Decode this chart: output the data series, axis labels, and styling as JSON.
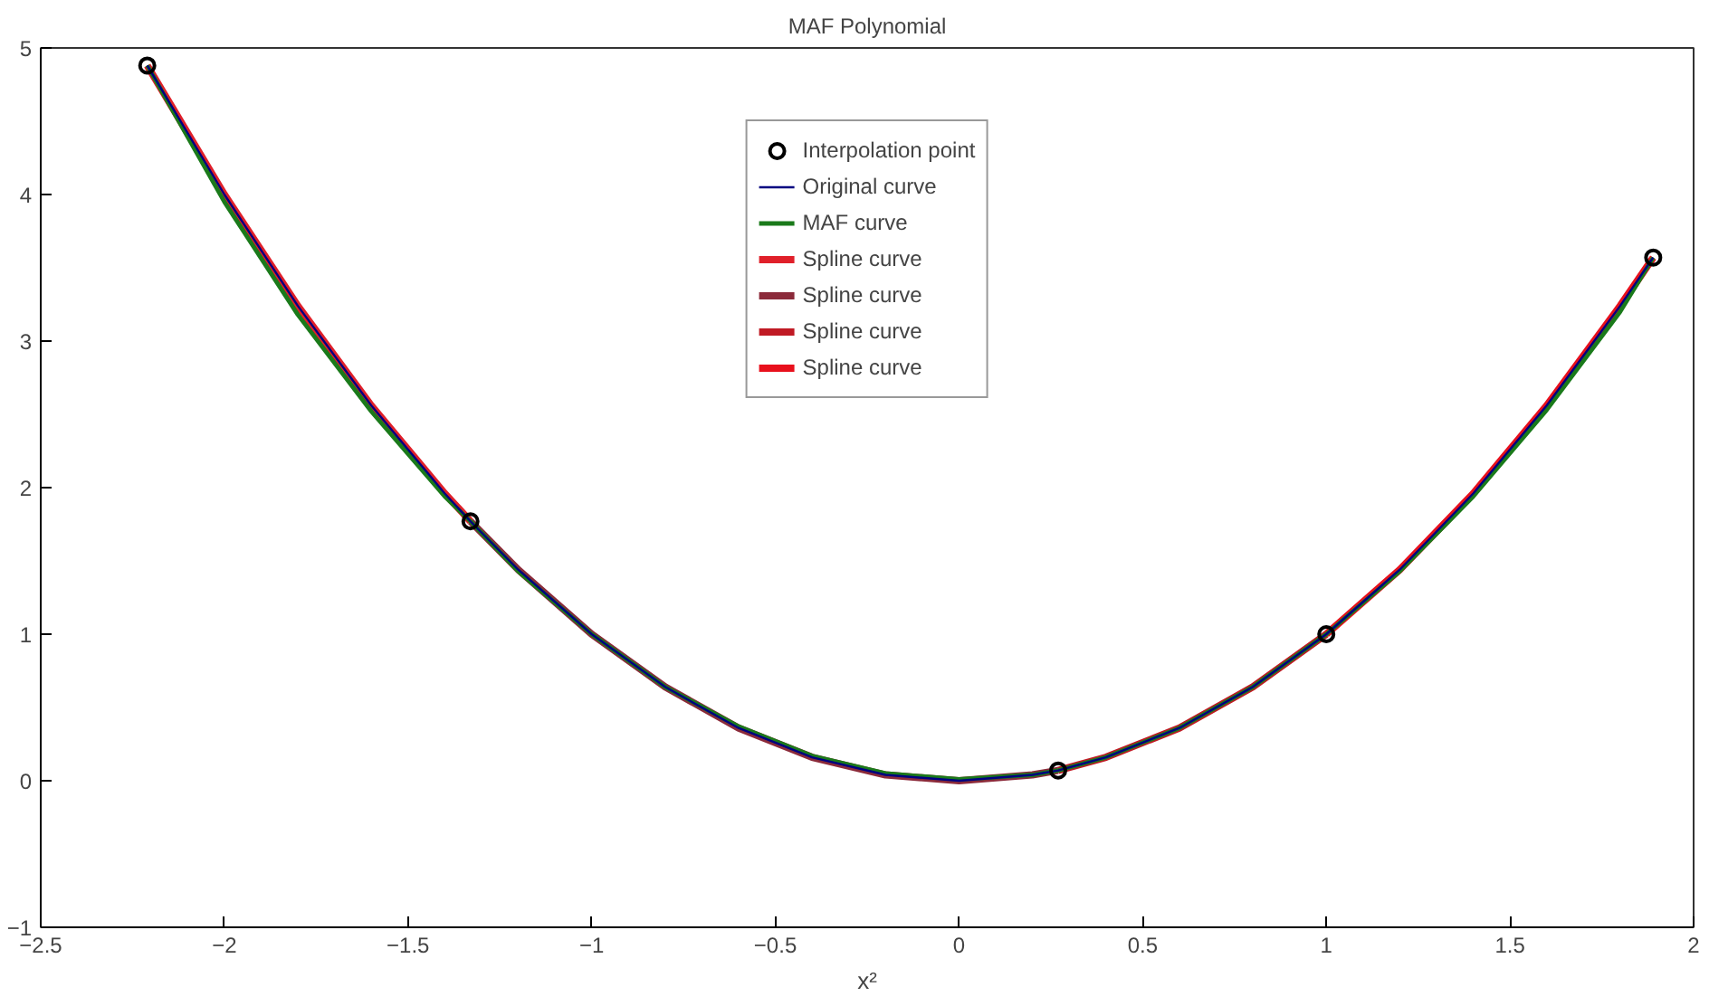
{
  "chart_data": {
    "type": "line",
    "title": "MAF Polynomial",
    "xlabel": "x²",
    "xlim": [
      -2.5,
      2
    ],
    "xticks": [
      -2.5,
      -2,
      -1.5,
      -1,
      -0.5,
      0,
      0.5,
      1,
      1.5,
      2
    ],
    "ylim": [
      -1,
      5
    ],
    "yticks": [
      -1,
      0,
      1,
      2,
      3,
      4,
      5
    ],
    "grid": false,
    "legend": "top",
    "line_style": "solid",
    "series": [
      {
        "name": "Interpolation point",
        "type": "scatter",
        "marker": "circle",
        "color": "#000000",
        "x": [
          -2.21,
          -1.33,
          0.27,
          1.0,
          1.89
        ],
        "values": [
          4.88,
          1.77,
          0.07,
          1.0,
          3.57
        ]
      },
      {
        "name": "Original curve",
        "color": "#000080",
        "marker": "none",
        "x": [
          -2.21,
          -2.0,
          -1.8,
          -1.6,
          -1.4,
          -1.33,
          -1.2,
          -1.0,
          -0.8,
          -0.6,
          -0.4,
          -0.2,
          0,
          0.2,
          0.27,
          0.4,
          0.6,
          0.8,
          1.0,
          1.2,
          1.4,
          1.6,
          1.8,
          1.89
        ],
        "values": [
          4.88,
          4.0,
          3.24,
          2.56,
          1.96,
          1.77,
          1.44,
          1.0,
          0.64,
          0.36,
          0.16,
          0.04,
          0,
          0.04,
          0.07,
          0.16,
          0.36,
          0.64,
          1.0,
          1.44,
          1.96,
          2.56,
          3.24,
          3.57
        ]
      },
      {
        "name": "MAF curve",
        "color": "#1a7a1a",
        "marker": "none",
        "x": [
          -2.21,
          -2.0,
          -1.8,
          -1.6,
          -1.4,
          -1.33,
          -1.2,
          -1.0,
          -0.8,
          -0.6,
          -0.4,
          -0.2,
          0,
          0.2,
          0.27,
          0.4,
          0.6,
          0.8,
          1.0,
          1.2,
          1.4,
          1.6,
          1.8,
          1.89
        ],
        "values": [
          4.88,
          3.95,
          3.18,
          2.52,
          1.94,
          1.77,
          1.43,
          1.0,
          0.64,
          0.37,
          0.17,
          0.05,
          0.01,
          0.04,
          0.07,
          0.16,
          0.36,
          0.64,
          1.0,
          1.43,
          1.94,
          2.53,
          3.2,
          3.57
        ]
      },
      {
        "name": "Spline curve",
        "color": "#e0202a",
        "marker": "none",
        "x": [
          -2.21,
          -2.0,
          -1.8,
          -1.6,
          -1.4,
          -1.33
        ],
        "values": [
          4.88,
          4.0,
          3.24,
          2.56,
          1.96,
          1.77
        ]
      },
      {
        "name": "Spline curve",
        "color": "#8b2a3a",
        "marker": "none",
        "x": [
          -1.33,
          -1.2,
          -1.0,
          -0.8,
          -0.6,
          -0.4,
          -0.2,
          0,
          0.2,
          0.27
        ],
        "values": [
          1.77,
          1.44,
          1.0,
          0.64,
          0.36,
          0.16,
          0.04,
          0,
          0.04,
          0.07
        ]
      },
      {
        "name": "Spline curve",
        "color": "#c01a24",
        "marker": "none",
        "x": [
          0.27,
          0.4,
          0.6,
          0.8,
          1.0
        ],
        "values": [
          0.07,
          0.16,
          0.36,
          0.64,
          1.0
        ]
      },
      {
        "name": "Spline curve",
        "color": "#e8101c",
        "marker": "none",
        "x": [
          1.0,
          1.2,
          1.4,
          1.6,
          1.8,
          1.89
        ],
        "values": [
          1.0,
          1.44,
          1.96,
          2.56,
          3.24,
          3.57
        ]
      }
    ]
  }
}
